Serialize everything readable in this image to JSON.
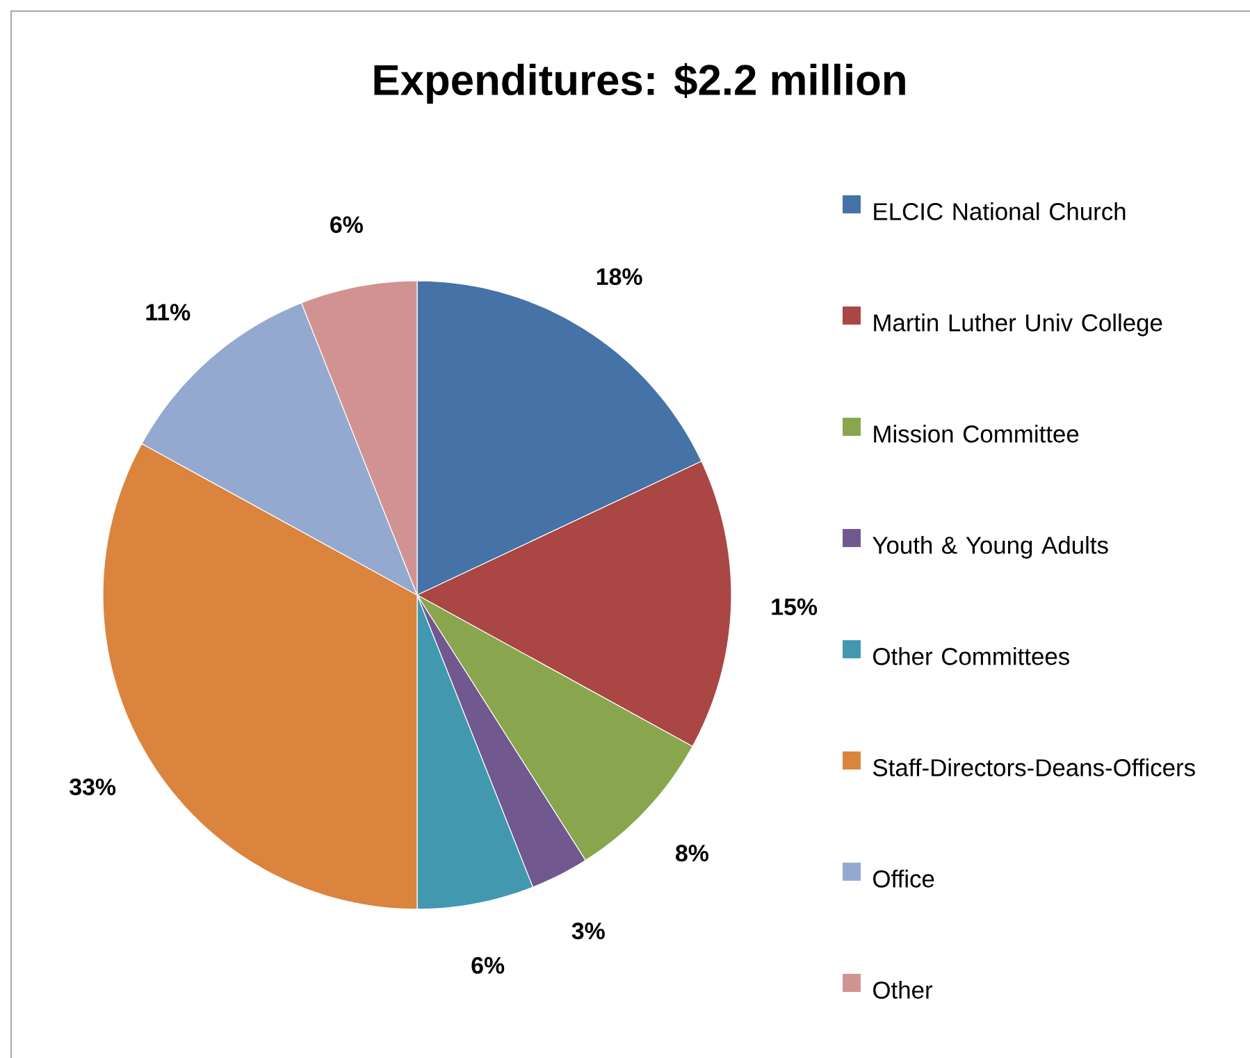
{
  "chart_data": {
    "type": "pie",
    "title": "Expenditures: $2.2 million",
    "categories": [
      "ELCIC National Church",
      "Martin Luther Univ College",
      "Mission Committee",
      "Youth & Young Adults",
      "Other Committees",
      "Staff-Directors-Deans-Officers",
      "Office",
      "Other"
    ],
    "values": [
      18,
      15,
      8,
      3,
      6,
      33,
      11,
      6
    ],
    "value_labels": [
      "18%",
      "15%",
      "8%",
      "3%",
      "6%",
      "33%",
      "11%",
      "6%"
    ],
    "colors": [
      "#4572a7",
      "#aa4643",
      "#89a54e",
      "#71588f",
      "#4198af",
      "#db843d",
      "#93a9cf",
      "#d19392"
    ],
    "legend": "right"
  }
}
